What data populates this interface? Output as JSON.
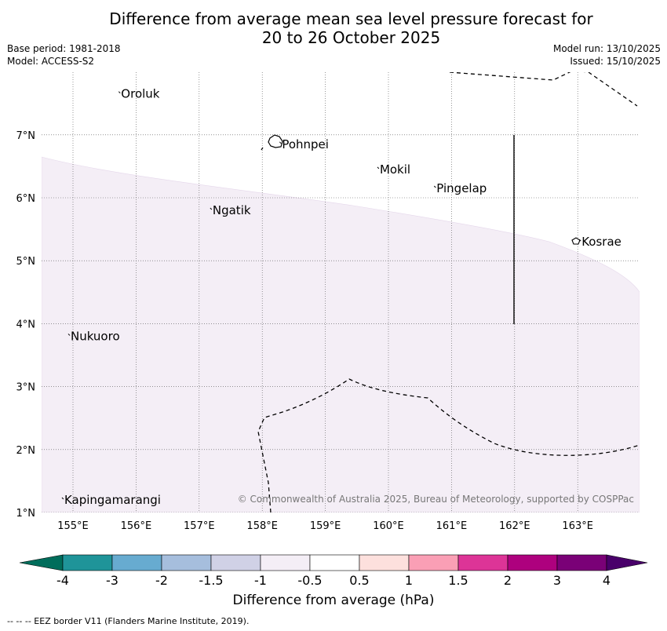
{
  "title_line1": "Difference from average mean sea level pressure forecast for",
  "title_line2": "20 to 26 October 2025",
  "base_period": "Base period: 1981-2018",
  "model": "Model: ACCESS-S2",
  "model_run": "Model run: 13/10/2025",
  "issued": "Issued: 15/10/2025",
  "copyright": "© Commonwealth of Australia 2025, Bureau of Meteorology, supported by COSPPac",
  "lon_labels": [
    "155°E",
    "156°E",
    "157°E",
    "158°E",
    "159°E",
    "160°E",
    "161°E",
    "162°E",
    "163°E"
  ],
  "lat_labels": [
    "7°N",
    "6°N",
    "5°N",
    "4°N",
    "3°N",
    "2°N",
    "1°N"
  ],
  "places": [
    {
      "name": "Oroluk",
      "lon": 155.75,
      "lat": 7.65
    },
    {
      "name": "Pohnpei",
      "lon": 158.3,
      "lat": 6.85
    },
    {
      "name": "Mokil",
      "lon": 159.85,
      "lat": 6.45
    },
    {
      "name": "Pingelap",
      "lon": 160.75,
      "lat": 6.15
    },
    {
      "name": "Ngatik",
      "lon": 157.2,
      "lat": 5.8
    },
    {
      "name": "Kosrae",
      "lon": 163.05,
      "lat": 5.3
    },
    {
      "name": "Nukuoro",
      "lon": 154.95,
      "lat": 3.8
    },
    {
      "name": "Kapingamarangi",
      "lon": 154.85,
      "lat": 1.2
    }
  ],
  "colorbar": {
    "title": "Difference from average (hPa)",
    "ticks": [
      "-4",
      "-3",
      "-2",
      "-1.5",
      "-1",
      "-0.5",
      "0.5",
      "1",
      "1.5",
      "2",
      "3",
      "4"
    ],
    "colors": [
      "#006d5b",
      "#1f9499",
      "#67abd0",
      "#a6bedd",
      "#d0d1e6",
      "#f4eef6",
      "#ffffff",
      "#fde0dd",
      "#fa9fb5",
      "#dd3497",
      "#ae017e",
      "#7a0177",
      "#49006a"
    ]
  },
  "footer": "--  --  -- EEZ border V11 (Flanders Marine Institute, 2019).",
  "colors": {
    "anomaly_fill": "#f4eef6",
    "grid": "#555555"
  }
}
